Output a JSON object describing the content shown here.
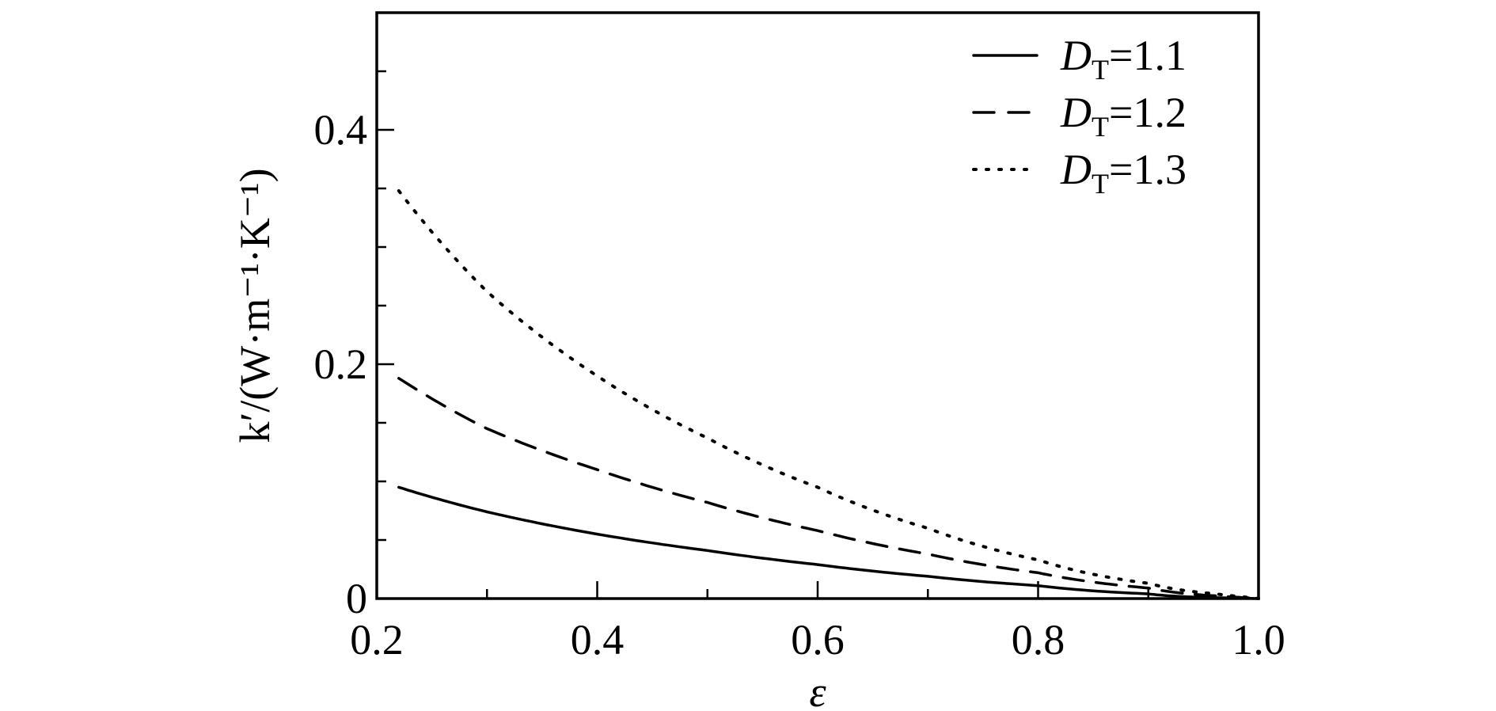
{
  "chart_data": {
    "type": "line",
    "xlabel": "ε",
    "ylabel": "k′/(W·m⁻¹·K⁻¹)",
    "xlim": [
      0.2,
      1.0
    ],
    "ylim": [
      0,
      0.5
    ],
    "x_ticks": [
      "0.2",
      "0.4",
      "0.6",
      "0.8",
      "1.0"
    ],
    "y_ticks": [
      "0",
      "0.2",
      "0.4"
    ],
    "legend_position": "top-right",
    "grid": false,
    "x": [
      0.22,
      0.3,
      0.4,
      0.5,
      0.6,
      0.7,
      0.8,
      0.9,
      0.95,
      1.0
    ],
    "series": [
      {
        "name": "DT=1.1",
        "name_main": "D",
        "name_sub": "T",
        "name_value": "=1.1",
        "style": "solid",
        "values": [
          0.095,
          0.074,
          0.055,
          0.041,
          0.029,
          0.019,
          0.011,
          0.004,
          0.001,
          0.0
        ]
      },
      {
        "name": "DT=1.2",
        "name_main": "D",
        "name_sub": "T",
        "name_value": "=1.2",
        "style": "dashed",
        "values": [
          0.188,
          0.145,
          0.11,
          0.082,
          0.058,
          0.038,
          0.022,
          0.009,
          0.003,
          0.0
        ]
      },
      {
        "name": "DT=1.3",
        "name_main": "D",
        "name_sub": "T",
        "name_value": "=1.3",
        "style": "dotted",
        "values": [
          0.348,
          0.262,
          0.19,
          0.137,
          0.095,
          0.06,
          0.033,
          0.013,
          0.005,
          0.0
        ]
      }
    ],
    "colors": {
      "line": "#000000",
      "axis": "#000000"
    }
  }
}
